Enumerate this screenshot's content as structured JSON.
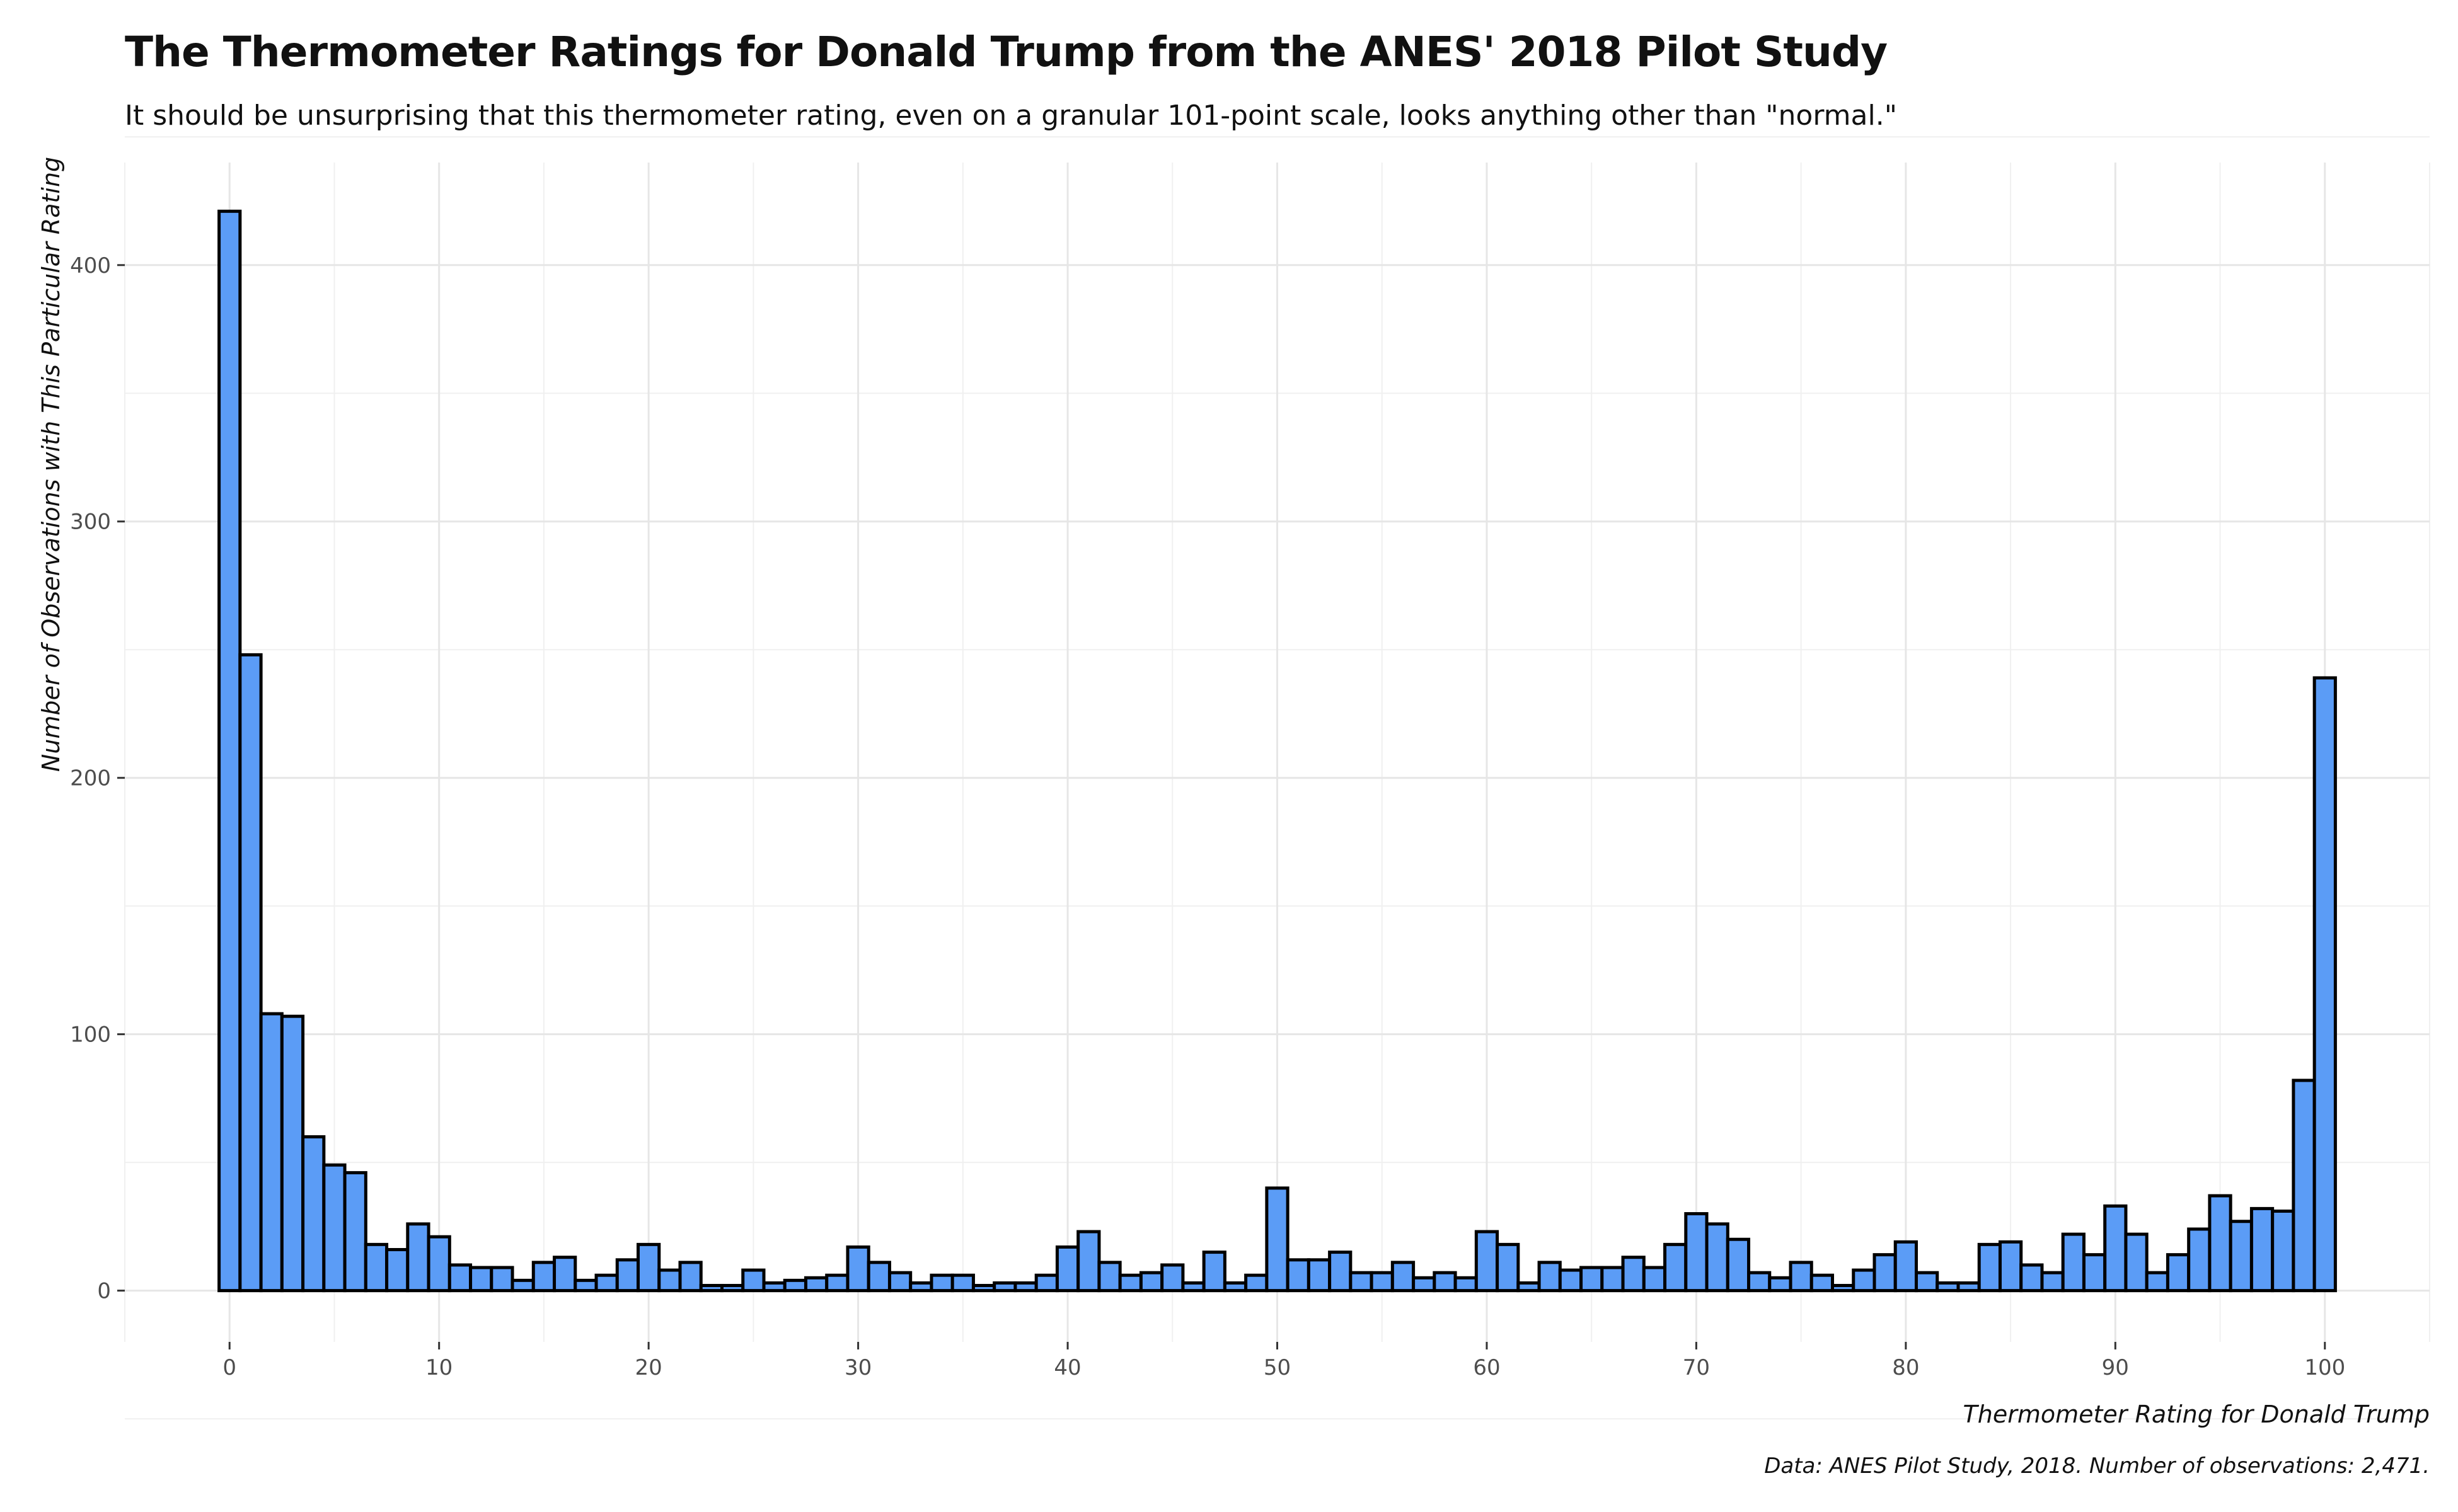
{
  "chart_data": {
    "type": "bar",
    "title": "The Thermometer Ratings for Donald Trump from the ANES' 2018 Pilot Study",
    "subtitle": "It should be unsurprising that this thermometer rating, even on a granular 101-point scale, looks anything other than \"normal.\"",
    "xlabel": "Thermometer Rating for Donald Trump",
    "ylabel": "Number of Observations with This Particular Rating",
    "caption": "Data: ANES Pilot Study, 2018. Number of observations: 2,471.",
    "xlim": [
      -5,
      105
    ],
    "ylim": [
      -20,
      440
    ],
    "x_ticks": [
      0,
      10,
      20,
      30,
      40,
      50,
      60,
      70,
      80,
      90,
      100
    ],
    "y_ticks": [
      0,
      100,
      200,
      300,
      400
    ],
    "grid": true,
    "bar_fill": "#5b9cf6",
    "bar_stroke": "#000000",
    "x": [
      0,
      1,
      2,
      3,
      4,
      5,
      6,
      7,
      8,
      9,
      10,
      11,
      12,
      13,
      14,
      15,
      16,
      17,
      18,
      19,
      20,
      21,
      22,
      23,
      24,
      25,
      26,
      27,
      28,
      29,
      30,
      31,
      32,
      33,
      34,
      35,
      36,
      37,
      38,
      39,
      40,
      41,
      42,
      43,
      44,
      45,
      46,
      47,
      48,
      49,
      50,
      51,
      52,
      53,
      54,
      55,
      56,
      57,
      58,
      59,
      60,
      61,
      62,
      63,
      64,
      65,
      66,
      67,
      68,
      69,
      70,
      71,
      72,
      73,
      74,
      75,
      76,
      77,
      78,
      79,
      80,
      81,
      82,
      83,
      84,
      85,
      86,
      87,
      88,
      89,
      90,
      91,
      92,
      93,
      94,
      95,
      96,
      97,
      98,
      99,
      100
    ],
    "values": [
      421,
      248,
      108,
      107,
      60,
      49,
      46,
      18,
      16,
      26,
      21,
      10,
      9,
      9,
      4,
      11,
      13,
      4,
      6,
      12,
      18,
      8,
      11,
      2,
      2,
      8,
      3,
      4,
      5,
      6,
      17,
      11,
      7,
      3,
      6,
      6,
      2,
      3,
      3,
      6,
      17,
      23,
      11,
      6,
      7,
      10,
      3,
      15,
      3,
      6,
      40,
      12,
      12,
      15,
      7,
      7,
      11,
      5,
      7,
      5,
      23,
      18,
      3,
      11,
      8,
      9,
      9,
      13,
      9,
      18,
      30,
      26,
      20,
      7,
      5,
      11,
      6,
      2,
      8,
      14,
      19,
      7,
      3,
      3,
      18,
      19,
      10,
      7,
      22,
      14,
      33,
      22,
      7,
      14,
      24,
      37,
      27,
      32,
      31,
      82,
      239
    ]
  }
}
